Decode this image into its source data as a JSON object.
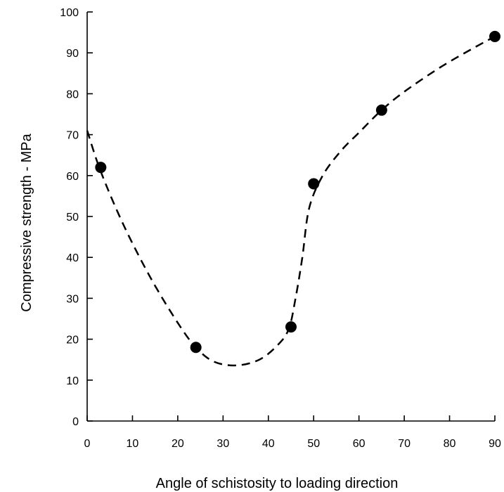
{
  "chart_data": {
    "type": "scatter",
    "xlabel": "Angle of schistosity to loading direction",
    "ylabel": "Compressive strength - MPa",
    "xlim": [
      0,
      90
    ],
    "ylim": [
      0,
      100
    ],
    "x_ticks": [
      0,
      10,
      20,
      30,
      40,
      50,
      60,
      70,
      80,
      90
    ],
    "y_ticks": [
      0,
      10,
      20,
      30,
      40,
      50,
      60,
      70,
      80,
      90,
      100
    ],
    "x_tick_labels": [
      "0",
      "10",
      "20",
      "30",
      "40",
      "50",
      "60",
      "70",
      "80",
      "90"
    ],
    "y_tick_labels": [
      "0",
      "10",
      "20",
      "30",
      "40",
      "50",
      "60",
      "70",
      "80",
      "90",
      "100"
    ],
    "grid": false,
    "series": [
      {
        "style": "filled-circle-markers",
        "x": [
          3,
          24,
          45,
          50,
          65,
          90
        ],
        "y": [
          62,
          18,
          23,
          58,
          76,
          94
        ]
      },
      {
        "style": "dashed-curve",
        "x": [
          0,
          3,
          8,
          14,
          20,
          24,
          28,
          33,
          38,
          42,
          44.5,
          46,
          47.5,
          49,
          52,
          56,
          60,
          65,
          70,
          78,
          85,
          90
        ],
        "y": [
          71,
          61,
          48,
          35,
          24,
          18,
          14.5,
          13.6,
          15,
          18.5,
          22.5,
          30,
          40,
          52,
          60,
          66,
          70.5,
          76,
          80.5,
          86.5,
          91,
          94
        ]
      }
    ]
  }
}
